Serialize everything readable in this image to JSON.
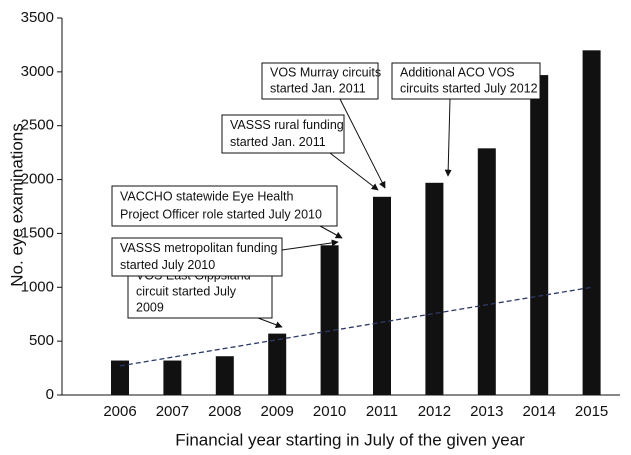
{
  "chart_data": {
    "type": "bar",
    "categories": [
      "2006",
      "2007",
      "2008",
      "2009",
      "2010",
      "2011",
      "2012",
      "2013",
      "2014",
      "2015"
    ],
    "values": [
      320,
      320,
      360,
      570,
      1390,
      1840,
      1970,
      2290,
      2970,
      3200
    ],
    "color": "#111111",
    "ylim": [
      0,
      3500
    ],
    "yticks": [
      0,
      500,
      1000,
      1500,
      2000,
      2500,
      3000,
      3500
    ],
    "y_label": "No. eye examinations",
    "x_label": "Financial year starting in July of the given year",
    "trend": {
      "values": [
        270,
        1000
      ],
      "color": "#2b3a67"
    },
    "annotations": [
      {
        "lines": [
          "VOS East Gippsland",
          "circuit started July",
          "2009"
        ]
      },
      {
        "lines": [
          "VASSS metropolitan funding",
          "started July 2010"
        ]
      },
      {
        "lines": [
          "VACCHO statewide Eye Health",
          "Project Officer role started July 2010"
        ]
      },
      {
        "lines": [
          "VASSS rural funding",
          "started Jan. 2011"
        ]
      },
      {
        "lines": [
          "VOS Murray circuits",
          "started Jan. 2011"
        ]
      },
      {
        "lines": [
          "Additional ACO VOS",
          "circuits started July 2012"
        ]
      }
    ]
  }
}
